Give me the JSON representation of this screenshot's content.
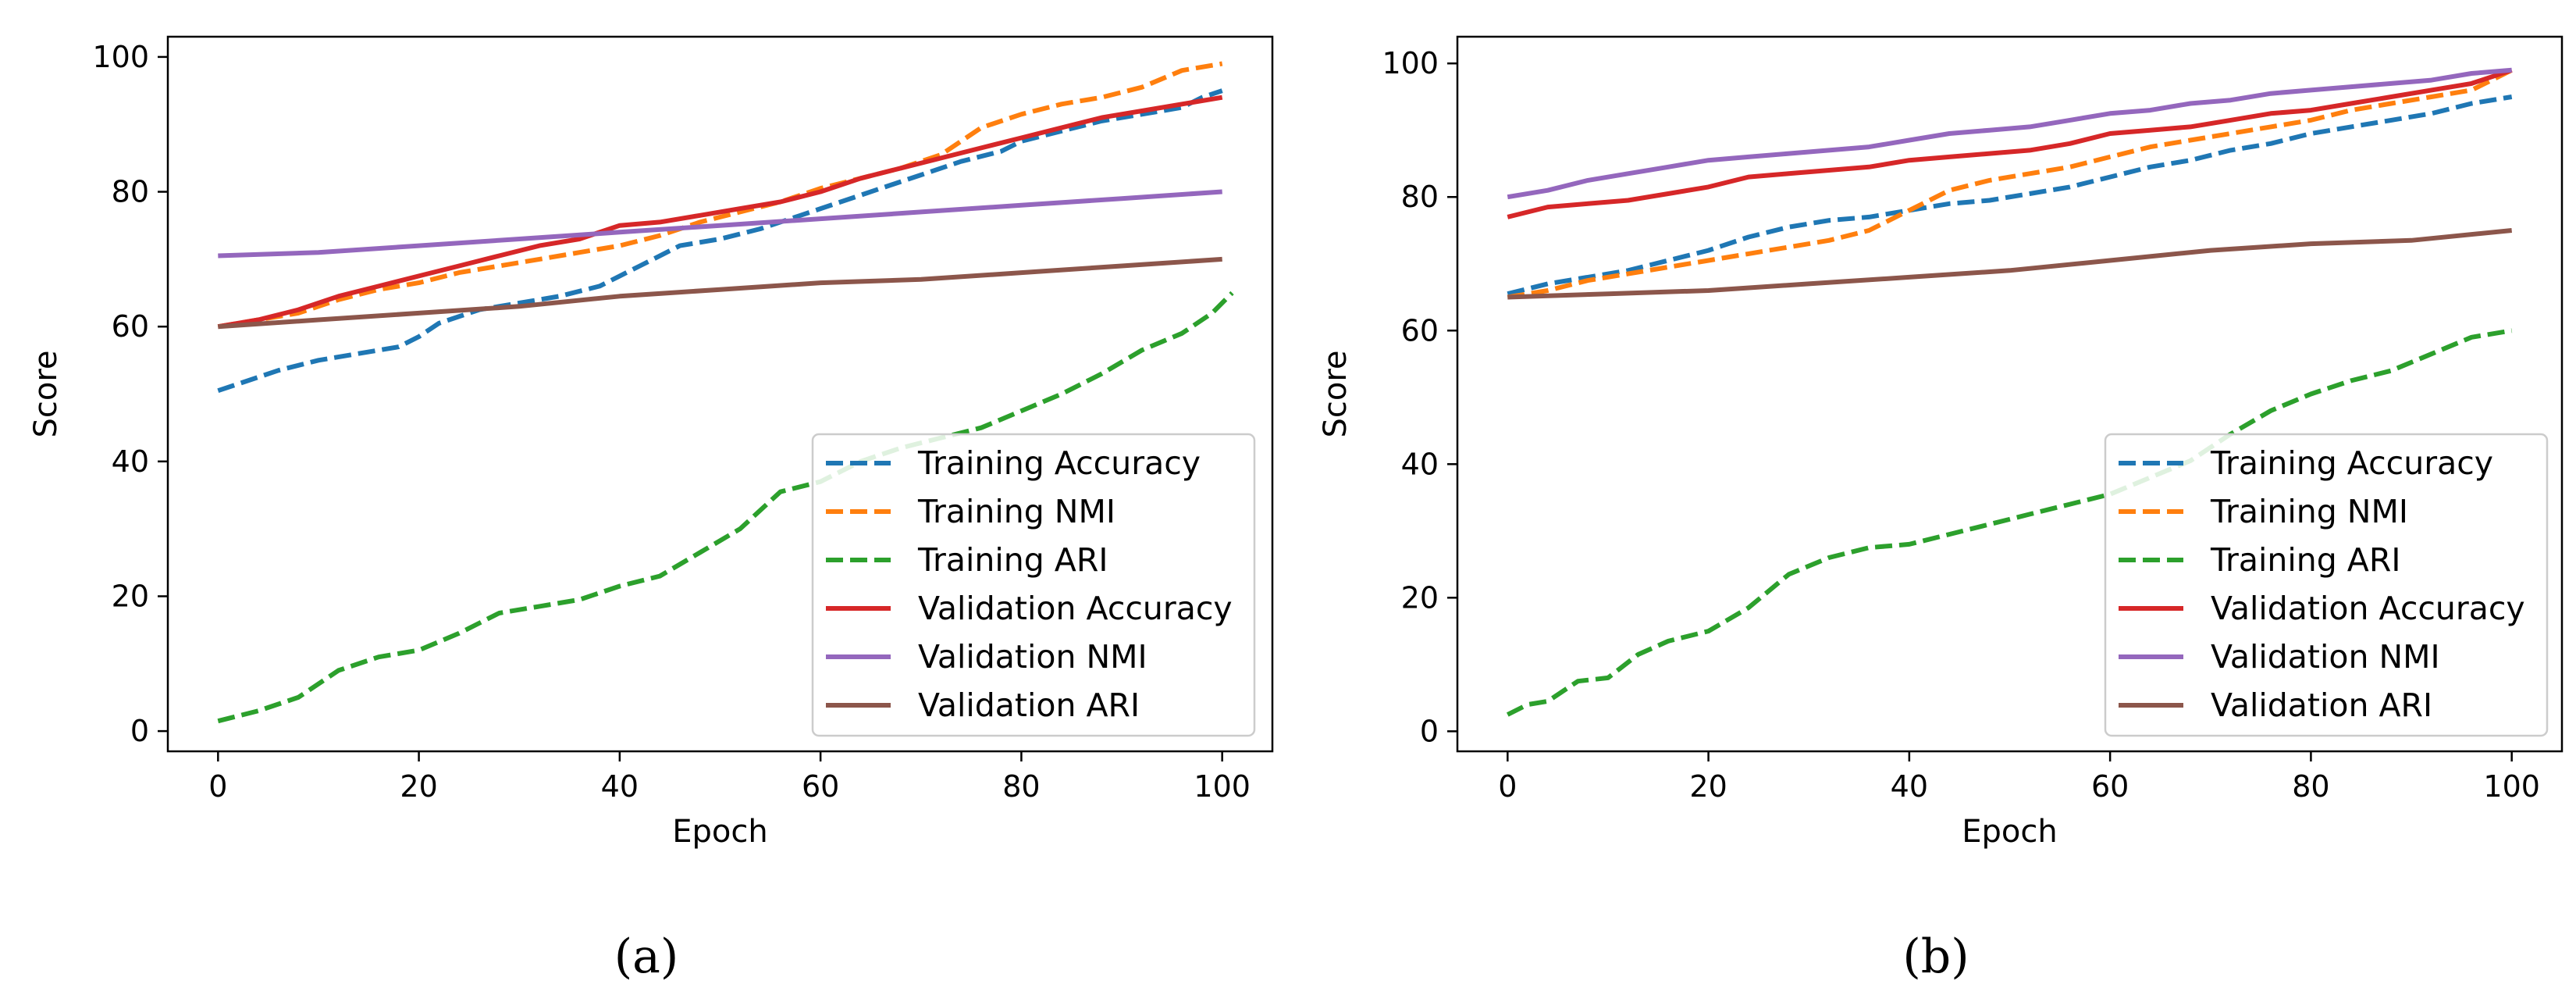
{
  "figure": {
    "panels": [
      {
        "caption": "(a)",
        "chart_data": {
          "type": "line",
          "title": "",
          "xlabel": "Epoch",
          "ylabel": "Score",
          "xlim": [
            -5,
            105
          ],
          "ylim": [
            -3,
            103
          ],
          "xticks": [
            0,
            20,
            40,
            60,
            80,
            100
          ],
          "yticks": [
            0,
            20,
            40,
            60,
            80,
            100
          ],
          "grid": false,
          "legend_position": "lower-right",
          "series": [
            {
              "name": "Training Accuracy",
              "color": "#1f77b4",
              "style": "dashed",
              "x": [
                0,
                2,
                6,
                10,
                14,
                18,
                20,
                22,
                26,
                30,
                34,
                38,
                40,
                42,
                46,
                50,
                54,
                58,
                62,
                66,
                70,
                74,
                78,
                80,
                84,
                88,
                92,
                96,
                98,
                100
              ],
              "y": [
                50.5,
                51.5,
                53.5,
                55,
                56,
                57,
                58.5,
                60.5,
                62.5,
                63.5,
                64.5,
                66,
                67.5,
                69,
                72,
                73,
                74.5,
                76.5,
                78.5,
                80.5,
                82.5,
                84.5,
                86,
                87.5,
                89,
                90.5,
                91.5,
                92.5,
                94,
                95
              ]
            },
            {
              "name": "Training NMI",
              "color": "#ff7f0e",
              "style": "dashed",
              "x": [
                0,
                4,
                8,
                12,
                16,
                20,
                24,
                28,
                32,
                36,
                40,
                44,
                48,
                52,
                56,
                60,
                64,
                68,
                72,
                76,
                80,
                84,
                88,
                92,
                96,
                100
              ],
              "y": [
                60,
                61,
                62,
                64,
                65.5,
                66.5,
                68,
                69,
                70,
                71,
                72,
                73.5,
                75.5,
                77,
                78.5,
                80.5,
                82,
                83.5,
                85.5,
                89.5,
                91.5,
                93,
                94,
                95.5,
                98,
                99
              ]
            },
            {
              "name": "Training ARI",
              "color": "#2ca02c",
              "style": "dashed",
              "x": [
                0,
                4,
                8,
                12,
                16,
                20,
                24,
                28,
                32,
                36,
                40,
                44,
                48,
                52,
                56,
                60,
                64,
                68,
                72,
                76,
                80,
                84,
                88,
                92,
                96,
                99,
                101
              ],
              "y": [
                1.5,
                3,
                5,
                9,
                11,
                12,
                14.5,
                17.5,
                18.5,
                19.5,
                21.5,
                23,
                26.5,
                30,
                35.5,
                37,
                40,
                42,
                43.5,
                45,
                47.5,
                50,
                53,
                56.5,
                59,
                62,
                65
              ]
            },
            {
              "name": "Validation Accuracy",
              "color": "#d62728",
              "style": "solid",
              "x": [
                0,
                4,
                8,
                12,
                16,
                20,
                24,
                28,
                32,
                36,
                40,
                44,
                48,
                52,
                56,
                60,
                64,
                68,
                72,
                76,
                80,
                84,
                88,
                92,
                96,
                100
              ],
              "y": [
                60,
                61,
                62.5,
                64.5,
                66,
                67.5,
                69,
                70.5,
                72,
                73,
                75,
                75.5,
                76.5,
                77.5,
                78.5,
                80,
                82,
                83.5,
                85,
                86.5,
                88,
                89.5,
                91,
                92,
                93,
                94
              ]
            },
            {
              "name": "Validation NMI",
              "color": "#9467bd",
              "style": "solid",
              "x": [
                0,
                10,
                20,
                30,
                40,
                50,
                60,
                70,
                80,
                90,
                100
              ],
              "y": [
                70.5,
                71,
                72,
                73,
                74,
                75,
                76,
                77,
                78,
                79,
                80
              ]
            },
            {
              "name": "Validation ARI",
              "color": "#8c564b",
              "style": "solid",
              "x": [
                0,
                10,
                20,
                30,
                40,
                50,
                60,
                70,
                80,
                90,
                100
              ],
              "y": [
                60,
                61,
                62,
                63,
                64.5,
                65.5,
                66.5,
                67,
                68,
                69,
                70
              ]
            }
          ]
        }
      },
      {
        "caption": "(b)",
        "chart_data": {
          "type": "line",
          "title": "",
          "xlabel": "Epoch",
          "ylabel": "Score",
          "xlim": [
            -5,
            105
          ],
          "ylim": [
            -3,
            104
          ],
          "xticks": [
            0,
            20,
            40,
            60,
            80,
            100
          ],
          "yticks": [
            0,
            20,
            40,
            60,
            80,
            100
          ],
          "grid": false,
          "legend_position": "lower-right",
          "series": [
            {
              "name": "Training Accuracy",
              "color": "#1f77b4",
              "style": "dashed",
              "x": [
                0,
                4,
                8,
                12,
                16,
                20,
                24,
                28,
                32,
                36,
                40,
                44,
                48,
                52,
                56,
                60,
                64,
                68,
                72,
                76,
                80,
                84,
                88,
                92,
                96,
                100
              ],
              "y": [
                65.5,
                67,
                68,
                69,
                70.5,
                72,
                74,
                75.5,
                76.5,
                77,
                78,
                79,
                79.5,
                80.5,
                81.5,
                83,
                84.5,
                85.5,
                87,
                88,
                89.5,
                90.5,
                91.5,
                92.5,
                94,
                95
              ]
            },
            {
              "name": "Training NMI",
              "color": "#ff7f0e",
              "style": "dashed",
              "x": [
                0,
                4,
                8,
                12,
                16,
                20,
                24,
                28,
                32,
                36,
                40,
                44,
                48,
                52,
                56,
                60,
                64,
                68,
                72,
                76,
                80,
                84,
                88,
                92,
                96,
                100
              ],
              "y": [
                65,
                66,
                67.5,
                68.5,
                69.5,
                70.5,
                71.5,
                72.5,
                73.5,
                75,
                78,
                81,
                82.5,
                83.5,
                84.5,
                86,
                87.5,
                88.5,
                89.5,
                90.5,
                91.5,
                93,
                94,
                95,
                96,
                99
              ]
            },
            {
              "name": "Training ARI",
              "color": "#2ca02c",
              "style": "dashed",
              "x": [
                0,
                2,
                4,
                7,
                10,
                13,
                16,
                20,
                24,
                28,
                32,
                36,
                40,
                44,
                48,
                52,
                56,
                60,
                64,
                68,
                72,
                76,
                80,
                84,
                88,
                92,
                96,
                100
              ],
              "y": [
                2.5,
                4,
                4.5,
                7.5,
                8,
                11.5,
                13.5,
                15,
                18.5,
                23.5,
                26,
                27.5,
                28,
                29.5,
                31,
                32.5,
                34,
                35.5,
                38,
                40.5,
                44.5,
                48,
                50.5,
                52.5,
                54,
                56.5,
                59,
                60
              ]
            },
            {
              "name": "Validation Accuracy",
              "color": "#d62728",
              "style": "solid",
              "x": [
                0,
                4,
                8,
                12,
                16,
                20,
                24,
                28,
                32,
                36,
                40,
                44,
                48,
                52,
                56,
                60,
                64,
                68,
                72,
                76,
                80,
                84,
                88,
                92,
                96,
                100
              ],
              "y": [
                77,
                78.5,
                79,
                79.5,
                80.5,
                81.5,
                83,
                83.5,
                84,
                84.5,
                85.5,
                86,
                86.5,
                87,
                88,
                89.5,
                90,
                90.5,
                91.5,
                92.5,
                93,
                94,
                95,
                96,
                97,
                99
              ]
            },
            {
              "name": "Validation NMI",
              "color": "#9467bd",
              "style": "solid",
              "x": [
                0,
                4,
                8,
                12,
                16,
                20,
                24,
                28,
                32,
                36,
                40,
                44,
                48,
                52,
                56,
                60,
                64,
                68,
                72,
                76,
                80,
                84,
                88,
                92,
                96,
                100
              ],
              "y": [
                80,
                81,
                82.5,
                83.5,
                84.5,
                85.5,
                86,
                86.5,
                87,
                87.5,
                88.5,
                89.5,
                90,
                90.5,
                91.5,
                92.5,
                93,
                94,
                94.5,
                95.5,
                96,
                96.5,
                97,
                97.5,
                98.5,
                99
              ]
            },
            {
              "name": "Validation ARI",
              "color": "#8c564b",
              "style": "solid",
              "x": [
                0,
                10,
                20,
                30,
                40,
                50,
                60,
                70,
                80,
                90,
                100
              ],
              "y": [
                65,
                65.5,
                66,
                67,
                68,
                69,
                70.5,
                72,
                73,
                73.5,
                75
              ]
            }
          ]
        }
      }
    ]
  }
}
